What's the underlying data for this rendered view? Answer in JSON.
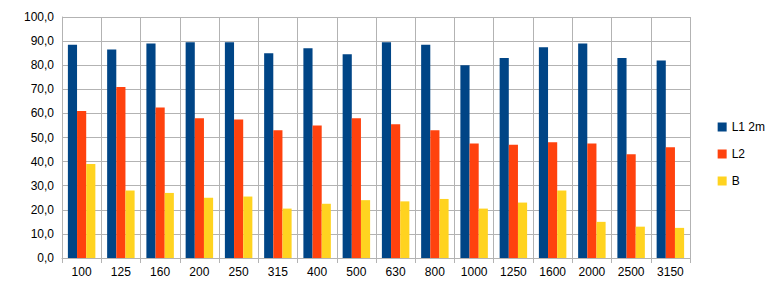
{
  "chart_data": {
    "type": "bar",
    "categories": [
      "100",
      "125",
      "160",
      "200",
      "250",
      "315",
      "400",
      "500",
      "630",
      "800",
      "1000",
      "1250",
      "1600",
      "2000",
      "2500",
      "3150"
    ],
    "series": [
      {
        "name": "L1 2m",
        "color": "#004586",
        "values": [
          88.5,
          86.5,
          89,
          89.5,
          89.5,
          85,
          87,
          84.5,
          89.5,
          88.5,
          80,
          83,
          87.5,
          89,
          83,
          82
        ]
      },
      {
        "name": "L2",
        "color": "#ff420e",
        "values": [
          61,
          71,
          62.5,
          58,
          57.5,
          53,
          55,
          58,
          55.5,
          53,
          47.5,
          47,
          48,
          47.5,
          43,
          46
        ]
      },
      {
        "name": "B",
        "color": "#ffd320",
        "values": [
          39,
          28,
          27,
          25,
          25.5,
          20.5,
          22.5,
          24,
          23.5,
          24.5,
          20.5,
          23,
          28,
          15,
          13,
          12.5
        ]
      }
    ],
    "ylim": [
      0,
      100
    ],
    "yticks": [
      {
        "value": 0,
        "label": "0,0"
      },
      {
        "value": 10,
        "label": "10,0"
      },
      {
        "value": 20,
        "label": "20,0"
      },
      {
        "value": 30,
        "label": "30,0"
      },
      {
        "value": 40,
        "label": "40,0"
      },
      {
        "value": 50,
        "label": "50,0"
      },
      {
        "value": 60,
        "label": "60,0"
      },
      {
        "value": 70,
        "label": "70,0"
      },
      {
        "value": 80,
        "label": "80,0"
      },
      {
        "value": 90,
        "label": "90,0"
      },
      {
        "value": 100,
        "label": "100,0"
      }
    ],
    "grid": true,
    "legend": "right"
  }
}
